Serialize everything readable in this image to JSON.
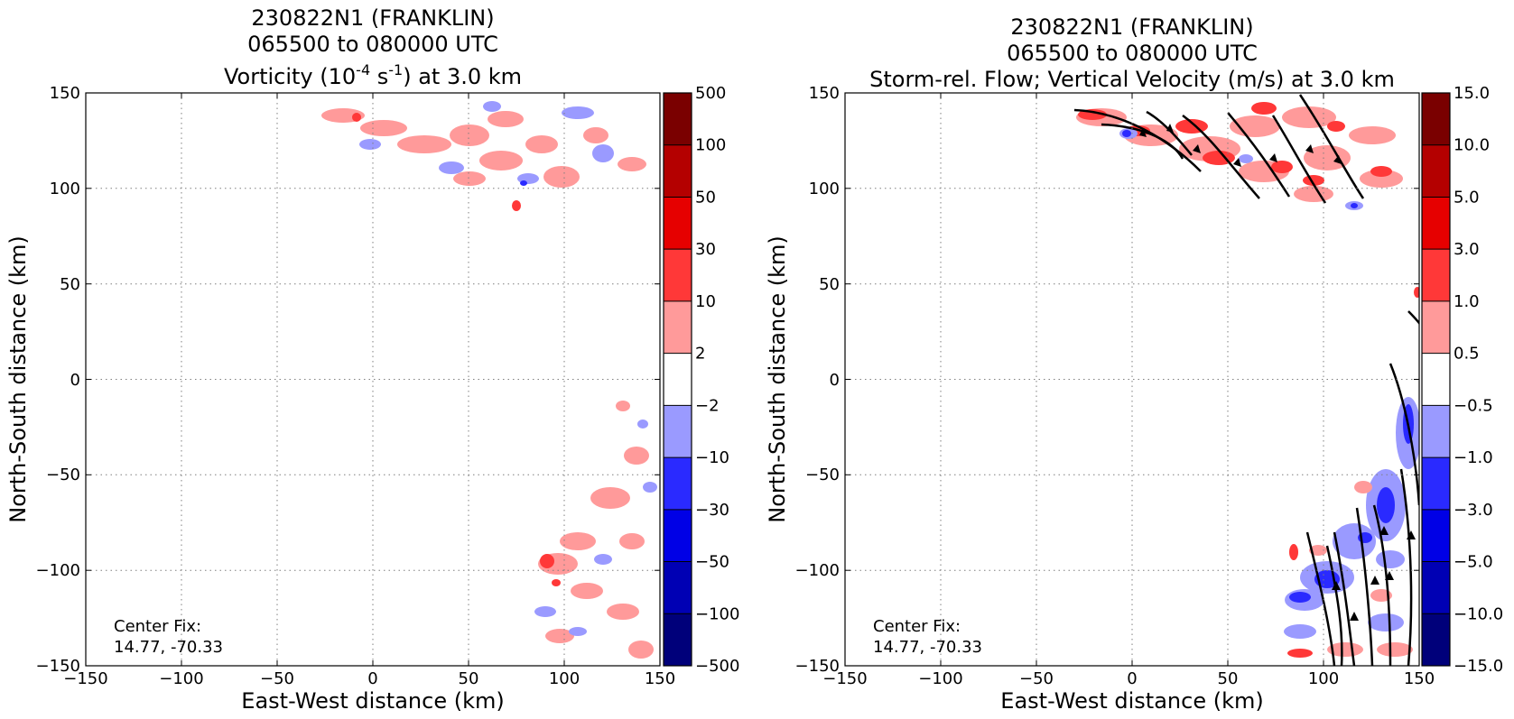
{
  "figure": {
    "panels": [
      {
        "id": "vorticity",
        "title_lines": [
          "230822N1 (FRANKLIN)",
          "065500 to 080000 UTC"
        ],
        "title_line3": {
          "pre": "Vorticity (10",
          "sup1": "-4",
          "mid": " s",
          "sup2": "-1",
          "post": ") at 3.0 km"
        },
        "xlabel": "East-West distance (km)",
        "ylabel": "North-South distance (km)",
        "annotation": [
          "Center Fix:",
          "14.77, -70.33"
        ]
      },
      {
        "id": "vertical_velocity",
        "title_lines": [
          "230822N1 (FRANKLIN)",
          "065500 to 080000 UTC",
          "Storm-rel. Flow; Vertical Velocity (m/s) at 3.0 km"
        ],
        "xlabel": "East-West distance (km)",
        "ylabel": "North-South distance (km)",
        "annotation": [
          "Center Fix:",
          "14.77, -70.33"
        ]
      }
    ]
  },
  "chart_data": [
    {
      "type": "heatmap",
      "field": "Vorticity",
      "units": "10^-4 s^-1",
      "level": "3.0 km",
      "xlim": [
        -150,
        150
      ],
      "ylim": [
        -150,
        150
      ],
      "xticks": [
        -150,
        -100,
        -50,
        0,
        50,
        100,
        150
      ],
      "yticks": [
        -150,
        -100,
        -50,
        0,
        50,
        100,
        150
      ],
      "xticklabels": [
        "−150",
        "−100",
        "−50",
        "0",
        "50",
        "100",
        "150"
      ],
      "yticklabels": [
        "−150",
        "−100",
        "−50",
        "0",
        "50",
        "100",
        "150"
      ],
      "grid": true,
      "colorbar": {
        "levels": [
          -500,
          -100,
          -50,
          -30,
          -10,
          -2,
          2,
          10,
          30,
          50,
          100,
          500
        ],
        "labels": [
          "−500",
          "−100",
          "−50",
          "−30",
          "−10",
          "−2",
          "2",
          "10",
          "30",
          "50",
          "100",
          "500"
        ],
        "colors": [
          "#00007a",
          "#0000b4",
          "#0000e6",
          "#2a2aff",
          "#9a9aff",
          "#ffffff",
          "#ff9a9a",
          "#ff3838",
          "#e60000",
          "#b40000",
          "#7a0000"
        ]
      },
      "data_regions": [
        {
          "x": [
            -28,
            150
          ],
          "y": [
            85,
            150
          ],
          "note": "northern band, mostly weak positive and negative vorticity"
        },
        {
          "x": [
            75,
            150
          ],
          "y": [
            -150,
            35
          ],
          "note": "southeastern band, mostly weak positive with scattered negative"
        }
      ],
      "center_fix": {
        "lat": 14.77,
        "lon": -70.33
      }
    },
    {
      "type": "heatmap",
      "field": "Vertical Velocity",
      "units": "m/s",
      "level": "3.0 km",
      "overlay": "Storm-rel. Flow streamlines",
      "xlim": [
        -150,
        150
      ],
      "ylim": [
        -150,
        150
      ],
      "xticks": [
        -150,
        -100,
        -50,
        0,
        50,
        100,
        150
      ],
      "yticks": [
        -150,
        -100,
        -50,
        0,
        50,
        100,
        150
      ],
      "xticklabels": [
        "−150",
        "−100",
        "−50",
        "0",
        "50",
        "100",
        "150"
      ],
      "yticklabels": [
        "−150",
        "−100",
        "−50",
        "0",
        "50",
        "100",
        "150"
      ],
      "grid": true,
      "colorbar": {
        "levels": [
          -15.0,
          -10.0,
          -5.0,
          -3.0,
          -1.0,
          -0.5,
          0.5,
          1.0,
          3.0,
          5.0,
          10.0,
          15.0
        ],
        "labels": [
          "−15.0",
          "−10.0",
          "−5.0",
          "−3.0",
          "−1.0",
          "−0.5",
          "0.5",
          "1.0",
          "3.0",
          "5.0",
          "10.0",
          "15.0"
        ],
        "colors": [
          "#00007a",
          "#0000b4",
          "#0000e6",
          "#2a2aff",
          "#9a9aff",
          "#ffffff",
          "#ff9a9a",
          "#ff3838",
          "#e60000",
          "#b40000",
          "#7a0000"
        ]
      },
      "data_regions": [
        {
          "x": [
            -30,
            150
          ],
          "y": [
            80,
            150
          ],
          "note": "northern band, predominantly upward motion with streamlines toward northwest"
        },
        {
          "x": [
            78,
            150
          ],
          "y": [
            -150,
            50
          ],
          "note": "southeastern band, mixed downward motion with streamlines toward north"
        }
      ],
      "center_fix": {
        "lat": 14.77,
        "lon": -70.33
      }
    }
  ]
}
